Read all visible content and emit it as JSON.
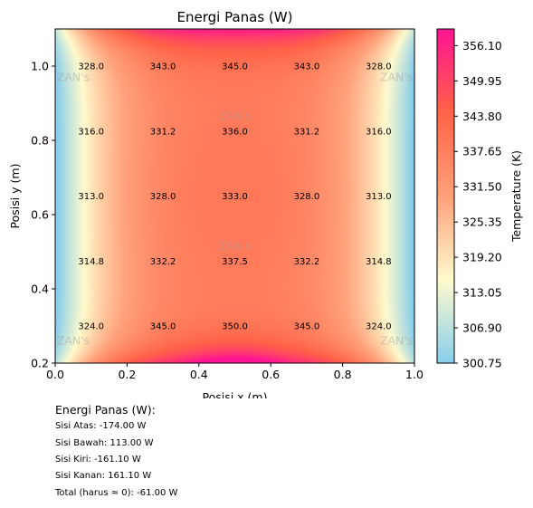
{
  "chart_data": {
    "type": "heatmap",
    "title": "Energi Panas (W)",
    "xlabel": "Posisi x (m)",
    "ylabel": "Posisi y (m)",
    "xlim": [
      0.0,
      1.0
    ],
    "ylim": [
      0.2,
      1.1
    ],
    "xticks": [
      "0.0",
      "0.2",
      "0.4",
      "0.6",
      "0.8",
      "1.0"
    ],
    "yticks": [
      "0.2",
      "0.4",
      "0.6",
      "0.8",
      "1.0"
    ],
    "grid": false,
    "colorbar": {
      "label": "Temperature (K)",
      "range": [
        300.75,
        359.0
      ],
      "ticks": [
        "300.75",
        "306.90",
        "313.05",
        "319.20",
        "325.35",
        "331.50",
        "337.65",
        "343.80",
        "349.95",
        "356.10"
      ],
      "colormap": [
        "#87ceeb",
        "#fffacd",
        "#ffa07a",
        "#ff6347",
        "#ff1493"
      ]
    },
    "x": [
      0.1,
      0.3,
      0.5,
      0.7,
      0.9
    ],
    "y": [
      1.0,
      0.825,
      0.65,
      0.475,
      0.3
    ],
    "values": [
      [
        "328.0",
        "343.0",
        "345.0",
        "343.0",
        "328.0"
      ],
      [
        "316.0",
        "331.2",
        "336.0",
        "331.2",
        "316.0"
      ],
      [
        "313.0",
        "328.0",
        "333.0",
        "328.0",
        "313.0"
      ],
      [
        "314.8",
        "332.2",
        "337.5",
        "332.2",
        "314.8"
      ],
      [
        "324.0",
        "345.0",
        "350.0",
        "345.0",
        "324.0"
      ]
    ],
    "watermark": "ZAN's"
  },
  "energy_summary": {
    "heading": "Energi Panas (W):",
    "lines": [
      "Sisi Atas: -174.00 W",
      "Sisi Bawah: 113.00 W",
      "Sisi Kiri: -161.10 W",
      "Sisi Kanan: 161.10 W",
      "Total (harus ≈ 0): -61.00 W"
    ]
  }
}
